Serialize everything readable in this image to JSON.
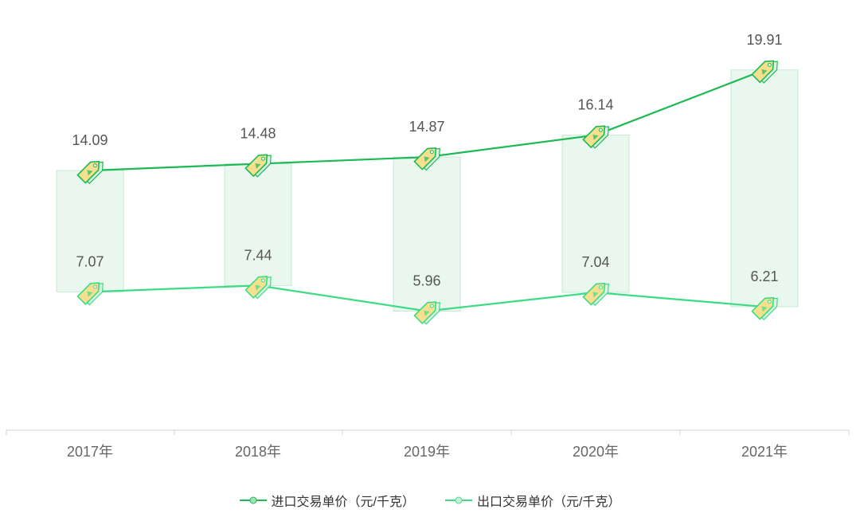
{
  "chart_data": {
    "type": "line",
    "categories": [
      "2017年",
      "2018年",
      "2019年",
      "2020年",
      "2021年"
    ],
    "series": [
      {
        "name": "进口交易单价（元/千克）",
        "values": [
          14.09,
          14.48,
          14.87,
          16.14,
          19.91
        ],
        "color": "#1db954"
      },
      {
        "name": "出口交易单价（元/千克）",
        "values": [
          7.07,
          7.44,
          5.96,
          7.04,
          6.21
        ],
        "color": "#3ddc84"
      }
    ],
    "range_bars": {
      "fill": "#eaf7ef",
      "stroke": "#c6ead3"
    },
    "marker_icon": "price-tag-icon",
    "legend_position": "bottom",
    "grid": false
  }
}
